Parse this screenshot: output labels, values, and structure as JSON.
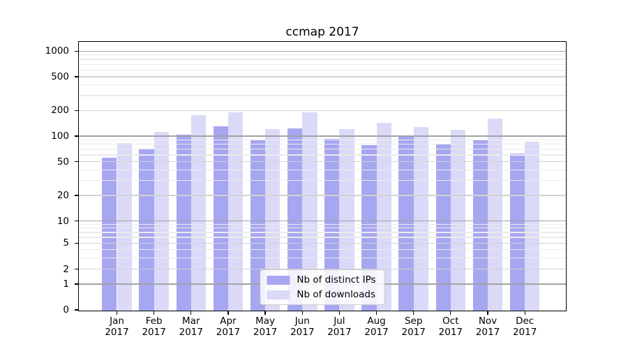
{
  "colors": {
    "ips_bar": "#a6a6f1",
    "downloads_bar": "#dadaf8",
    "grid_major": "#a3a3a3",
    "grid_mid": "#d2d2d2",
    "grid_minor": "#ebebeb",
    "axis": "#000000",
    "background": "#ffffff",
    "legend_border": "#cccccc"
  },
  "chart_data": {
    "type": "bar",
    "title": "ccmap 2017",
    "categories": [
      "Jan",
      "Feb",
      "Mar",
      "Apr",
      "May",
      "Jun",
      "Jul",
      "Aug",
      "Sep",
      "Oct",
      "Nov",
      "Dec"
    ],
    "year": "2017",
    "series": [
      {
        "name": "Nb of distinct IPs",
        "color": "#a6a6f1",
        "values": [
          57,
          73,
          105,
          133,
          91,
          125,
          95,
          79,
          100,
          83,
          93,
          63
        ]
      },
      {
        "name": "Nb of downloads",
        "color": "#dadaf8",
        "values": [
          85,
          115,
          180,
          193,
          123,
          195,
          124,
          146,
          130,
          121,
          165,
          88
        ]
      }
    ],
    "y_ticks": [
      1000,
      500,
      200,
      100,
      50,
      20,
      10,
      5,
      2,
      1,
      0
    ],
    "yscale": "symlog",
    "ylim": [
      0,
      1290
    ],
    "xlabel": "",
    "ylabel": "",
    "grid": true,
    "legend_position": "lower center"
  }
}
